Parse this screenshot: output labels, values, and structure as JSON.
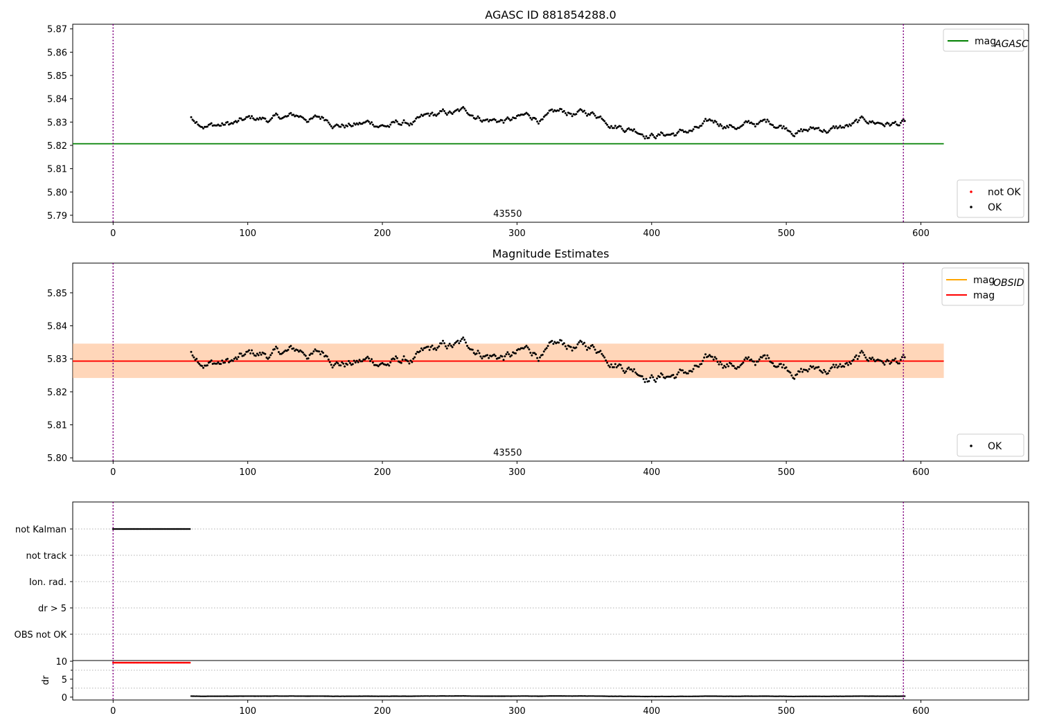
{
  "chart_data": [
    {
      "type": "scatter",
      "title": "AGASC ID 881854288.0",
      "xlim": [
        -30,
        680
      ],
      "ylim": [
        5.787,
        5.872
      ],
      "xticks": [
        0,
        100,
        200,
        300,
        400,
        500,
        600
      ],
      "yticks": [
        "5.79",
        "5.80",
        "5.81",
        "5.82",
        "5.83",
        "5.84",
        "5.85",
        "5.86",
        "5.87"
      ],
      "obsid_label": {
        "text": "43550",
        "x": 293
      },
      "obs_boundaries": [
        0,
        587
      ],
      "hlines": [
        {
          "name": "mag_AGASC",
          "y": 5.8207,
          "x": [
            -30,
            617
          ],
          "color": "#008000"
        }
      ],
      "series": [
        {
          "name": "not OK",
          "color": "#ff0000",
          "points": []
        },
        {
          "name": "OK",
          "color": "#000000",
          "x_range": [
            58,
            588
          ],
          "mean": 5.8295
        }
      ],
      "legends": [
        {
          "position": "top-right",
          "entries": [
            {
              "label": "mag",
              "sub": "AGASC",
              "kind": "line",
              "color": "#008000"
            }
          ]
        },
        {
          "position": "bottom-right",
          "entries": [
            {
              "label": "not OK",
              "kind": "dot",
              "color": "#ff0000"
            },
            {
              "label": "OK",
              "kind": "dot",
              "color": "#000000"
            }
          ]
        }
      ]
    },
    {
      "type": "scatter",
      "title": "Magnitude Estimates",
      "xlim": [
        -30,
        680
      ],
      "ylim": [
        5.799,
        5.859
      ],
      "xticks": [
        0,
        100,
        200,
        300,
        400,
        500,
        600
      ],
      "yticks": [
        "5.80",
        "5.81",
        "5.82",
        "5.83",
        "5.84",
        "5.85"
      ],
      "obsid_label": {
        "text": "43550",
        "x": 293
      },
      "obs_boundaries": [
        0,
        587
      ],
      "bands": [
        {
          "y": [
            5.8242,
            5.8346
          ],
          "x": [
            -30,
            617
          ],
          "color": "#ffc0cb",
          "opacity": 0.45
        },
        {
          "y": [
            5.8242,
            5.8346
          ],
          "x": [
            -30,
            617
          ],
          "color": "#ffa500",
          "opacity": 0.2
        }
      ],
      "hlines": [
        {
          "name": "mag_OBSID",
          "y": 5.8293,
          "x": [
            -30,
            617
          ],
          "color": "#ffa500"
        },
        {
          "name": "mag",
          "y": 5.8293,
          "x": [
            -30,
            617
          ],
          "color": "#ff0000"
        }
      ],
      "series": [
        {
          "name": "OK",
          "color": "#000000",
          "x_range": [
            58,
            588
          ],
          "mean": 5.8295
        }
      ],
      "legends": [
        {
          "position": "top-right",
          "entries": [
            {
              "label": "mag",
              "sub": "OBSID",
              "kind": "line",
              "color": "#ffa500"
            },
            {
              "label": "mag",
              "kind": "line",
              "color": "#ff0000"
            }
          ]
        },
        {
          "position": "bottom-right",
          "entries": [
            {
              "label": "OK",
              "kind": "dot",
              "color": "#000000"
            }
          ]
        }
      ]
    },
    {
      "type": "scatter",
      "title": "",
      "xlim": [
        -30,
        680
      ],
      "categories": [
        "not Kalman",
        "not track",
        "Ion. rad.",
        "dr > 5",
        "OBS not OK"
      ],
      "flag_series": [
        {
          "category": "not Kalman",
          "x_range": [
            0,
            57
          ],
          "color": "#000000"
        }
      ],
      "obs_boundaries": [
        0,
        587
      ]
    },
    {
      "type": "scatter",
      "title": "",
      "ylabel": "dr",
      "xlim": [
        -30,
        680
      ],
      "ylim": [
        -0.8,
        10.2
      ],
      "xticks": [
        0,
        100,
        200,
        300,
        400,
        500,
        600
      ],
      "yticks": [
        "0",
        "5",
        "10"
      ],
      "obs_boundaries": [
        0,
        587
      ],
      "series": [
        {
          "name": "dr clipped",
          "color": "#ff0000",
          "x_range": [
            0,
            57
          ],
          "y": 9.6
        },
        {
          "name": "dr",
          "color": "#000000",
          "x_range": [
            58,
            588
          ],
          "y": 0.25
        }
      ]
    }
  ]
}
